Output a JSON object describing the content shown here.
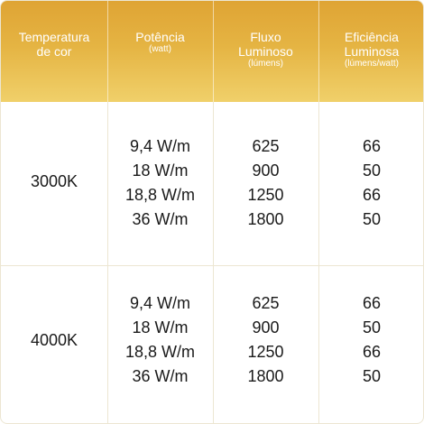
{
  "header": {
    "col1": {
      "line1": "Temperatura",
      "line2": "de cor"
    },
    "col2": {
      "title": "Potência",
      "unit": "(watt)"
    },
    "col3": {
      "line1": "Fluxo",
      "line2": "Luminoso",
      "unit": "(lúmens)"
    },
    "col4": {
      "line1": "Eficiência",
      "line2": "Luminosa",
      "unit": "(lúmens/watt)"
    }
  },
  "rows": [
    {
      "temperature": "3000K",
      "power": [
        "9,4 W/m",
        "18 W/m",
        "18,8 W/m",
        "36 W/m"
      ],
      "flux": [
        "625",
        "900",
        "1250",
        "1800"
      ],
      "efficiency": [
        "66",
        "50",
        "66",
        "50"
      ]
    },
    {
      "temperature": "4000K",
      "power": [
        "9,4 W/m",
        "18 W/m",
        "18,8 W/m",
        "36 W/m"
      ],
      "flux": [
        "625",
        "900",
        "1250",
        "1800"
      ],
      "efficiency": [
        "66",
        "50",
        "66",
        "50"
      ]
    }
  ],
  "colors": {
    "header_top": "#dfa434",
    "header_bottom": "#f0d06a",
    "grid": "#ece6d2",
    "text": "#1a1a1a"
  }
}
